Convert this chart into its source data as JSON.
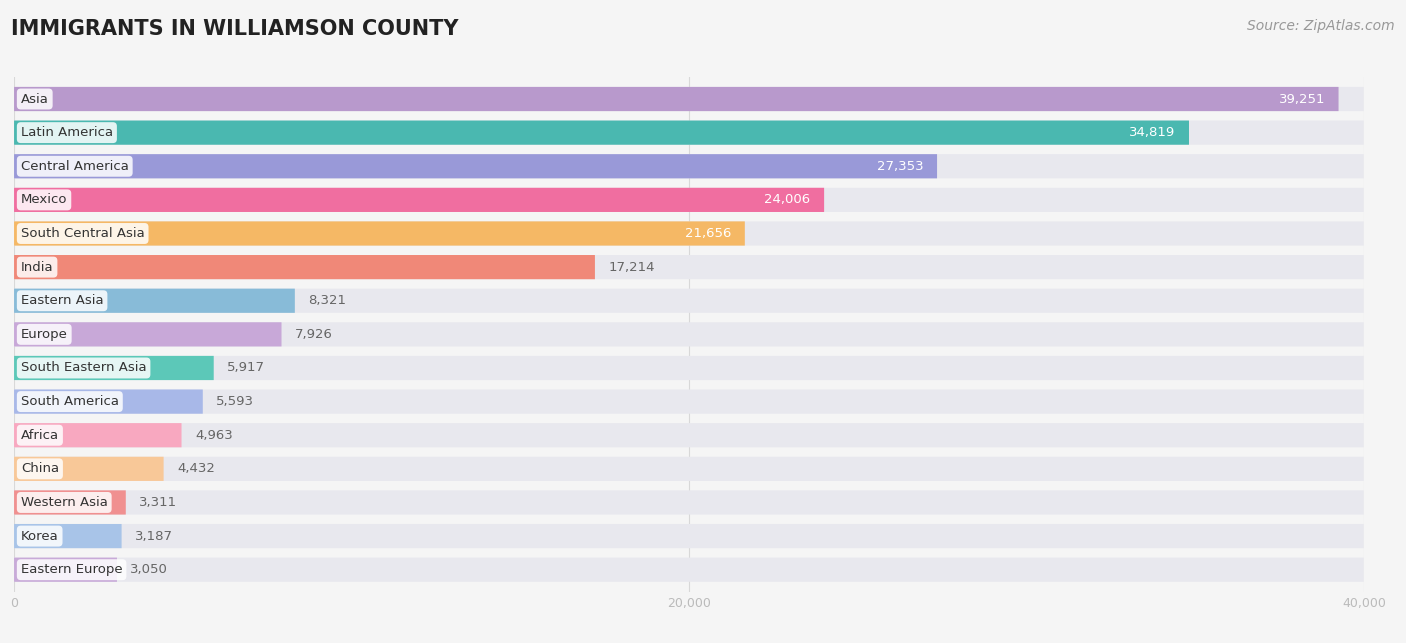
{
  "title": "IMMIGRANTS IN WILLIAMSON COUNTY",
  "source": "Source: ZipAtlas.com",
  "categories": [
    "Asia",
    "Latin America",
    "Central America",
    "Mexico",
    "South Central Asia",
    "India",
    "Eastern Asia",
    "Europe",
    "South Eastern Asia",
    "South America",
    "Africa",
    "China",
    "Western Asia",
    "Korea",
    "Eastern Europe"
  ],
  "values": [
    39251,
    34819,
    27353,
    24006,
    21656,
    17214,
    8321,
    7926,
    5917,
    5593,
    4963,
    4432,
    3311,
    3187,
    3050
  ],
  "colors": [
    "#b899cc",
    "#4ab8b0",
    "#9999d8",
    "#f06ea0",
    "#f5b865",
    "#f08878",
    "#88bbd8",
    "#c8a8d8",
    "#5cc8b8",
    "#a8b8e8",
    "#f8a8c0",
    "#f8c898",
    "#f09090",
    "#a8c4e8",
    "#c8aad8"
  ],
  "xlim": [
    0,
    40000
  ],
  "bar_height": 0.72,
  "background_color": "#f5f5f5",
  "bar_bg_color": "#e8e8ee",
  "title_fontsize": 15,
  "label_fontsize": 9.5,
  "value_fontsize": 9.5,
  "source_fontsize": 10,
  "value_threshold_white": 20000
}
